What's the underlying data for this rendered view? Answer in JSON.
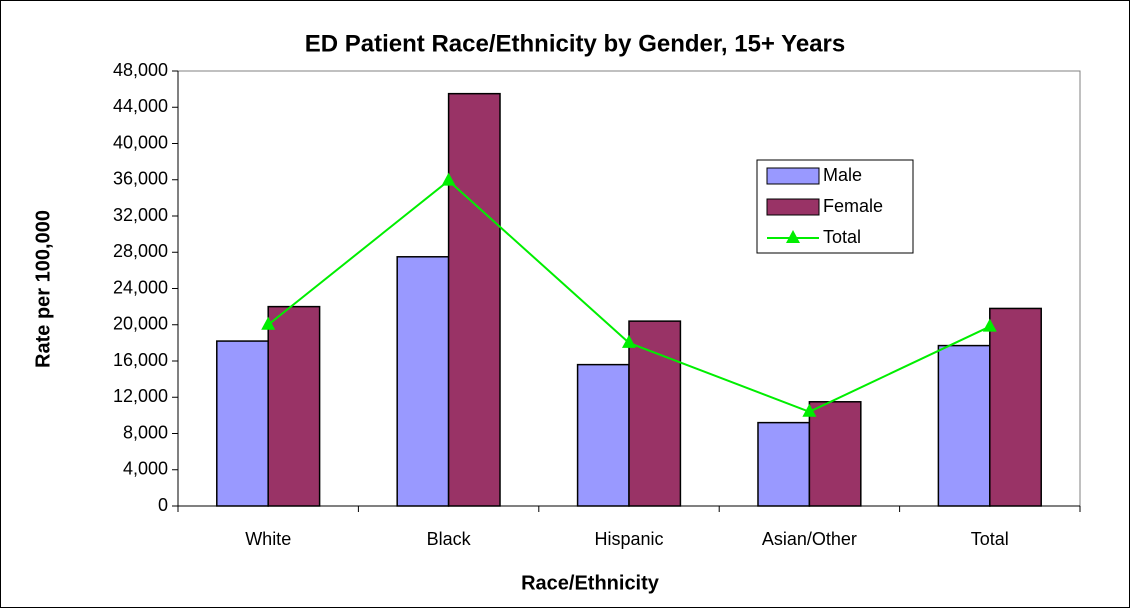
{
  "chart_data": {
    "type": "bar",
    "title": "ED Patient Race/Ethnicity by Gender, 15+ Years",
    "x_label": "Race/Ethnicity",
    "y_label": "Rate per 100,000",
    "categories": [
      "White",
      "Black",
      "Hispanic",
      "Asian/Other",
      "Total"
    ],
    "series": [
      {
        "name": "Male",
        "type": "bar",
        "color": "#9999ff",
        "values": [
          18200,
          27500,
          15600,
          9200,
          17700
        ]
      },
      {
        "name": "Female",
        "type": "bar",
        "color": "#993366",
        "values": [
          22000,
          45500,
          20400,
          11500,
          21800
        ]
      },
      {
        "name": "Total",
        "type": "line",
        "color": "#00ee00",
        "values": [
          20000,
          35900,
          18000,
          10400,
          19800
        ]
      }
    ],
    "ylim": [
      0,
      48000
    ],
    "yticks": [
      0,
      {
        "value": 4000,
        "label": "4,000"
      },
      {
        "value": 8000,
        "label": "8,000"
      },
      {
        "value": 12000,
        "label": "12,000"
      },
      {
        "value": 16000,
        "label": "16,000"
      },
      {
        "value": 20000,
        "label": "20,000"
      },
      {
        "value": 24000,
        "label": "24,000"
      },
      {
        "value": 28000,
        "label": "28,000"
      },
      {
        "value": 32000,
        "label": "32,000"
      },
      {
        "value": 36000,
        "label": "36,000"
      },
      {
        "value": 40000,
        "label": "40,000"
      },
      {
        "value": 44000,
        "label": "44,000"
      },
      {
        "value": 48000,
        "label": "48,000"
      }
    ],
    "grid": false
  }
}
